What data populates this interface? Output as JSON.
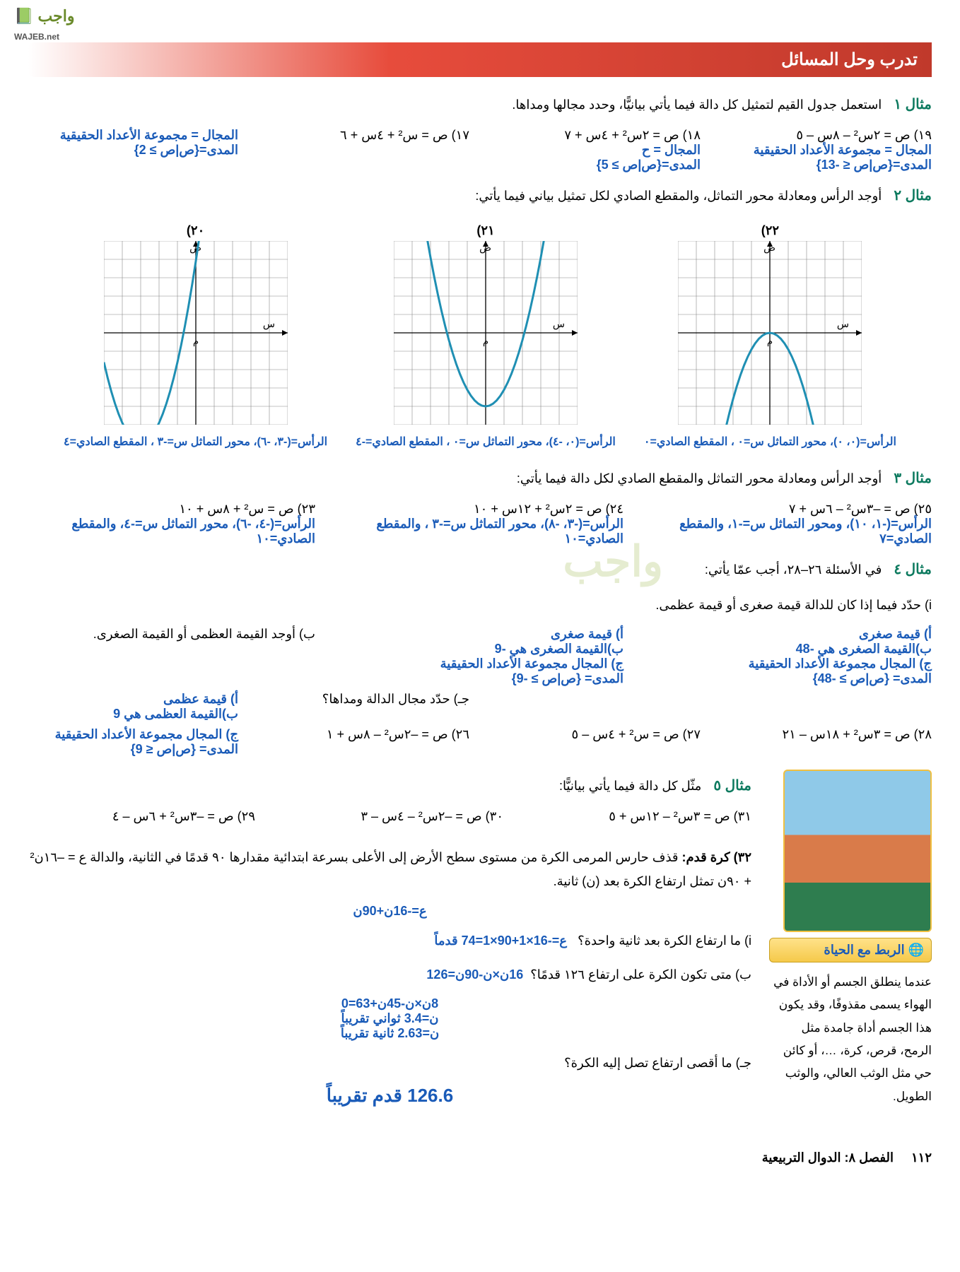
{
  "logo": {
    "ar": "واجب",
    "en": "WAJEB.net"
  },
  "header": "تدرب وحل المسائل",
  "ex1": {
    "label": "مثال ١",
    "prompt": "استعمل جدول القيم لتمثيل كل دالة فيما يأتي بيانيًّا، وحدد مجالها ومداها.",
    "domain_note": "المجال = مجموعة الأعداد الحقيقية",
    "range_note": "المدى={ص|ص ≥ 2}",
    "q17": "١٧) ص = س² + ٤س + ٦",
    "q18": {
      "eq": "١٨) ص = ٢س² + ٤س + ٧",
      "dom": "المجال = ح",
      "ran": "المدى={ص|ص ≥ 5}"
    },
    "q19": {
      "eq": "١٩) ص = ٢س² – ٨س – ٥",
      "dom": "المجال = مجموعة الأعداد الحقيقية",
      "ran": "المدى={ص|ص ≤ -13}"
    }
  },
  "ex2": {
    "label": "مثال ٢",
    "prompt": "أوجد الرأس ومعادلة محور التماثل، والمقطع الصادي لكل تمثيل بياني فيما يأتي:",
    "g": [
      {
        "num": "٢٠)",
        "cap": "الرأس=(-٣، -٦)، محور التماثل س=-٣ ، المقطع الصادي=٤",
        "vx": -3,
        "vy": -6,
        "a": 1.1
      },
      {
        "num": "٢١)",
        "cap": "الرأس=(٠، -٤)، محور التماثل س=٠ ، المقطع الصادي=-٤",
        "vx": 0,
        "vy": -4,
        "a": 0.9
      },
      {
        "num": "٢٢)",
        "cap": "الرأس=(٠، ٠)، محور التماثل س=٠ ، المقطع الصادي=٠",
        "vx": 0,
        "vy": 0,
        "a": -0.9
      }
    ]
  },
  "ex3": {
    "label": "مثال ٣",
    "prompt": "أوجد الرأس ومعادلة محور التماثل والمقطع الصادي لكل دالة فيما يأتي:",
    "q23": {
      "eq": "٢٣) ص = س² + ٨س + ١٠",
      "ans": "الرأس=(-٤، -٦)، محور التماثل س=-٤، والمقطع الصادي=١٠"
    },
    "q24": {
      "eq": "٢٤) ص = ٢س² + ١٢س + ١٠",
      "ans": "الرأس=(-٣، -٨)، محور التماثل س=-٣ ، والمقطع الصادي=١٠"
    },
    "q25": {
      "eq": "٢٥) ص = –٣س² – ٦س + ٧",
      "ans": "الرأس=(-١، ١٠)، ومحور التماثل س=-١، والمقطع الصادي=٧"
    }
  },
  "ex4": {
    "label": "مثال ٤",
    "prompt": "في الأسئلة ٢٦–٢٨، أجب عمّا يأتي:",
    "i": "i) حدّد فيما إذا كان للدالة قيمة صغرى أو قيمة عظمى.",
    "b": "ب) أوجد القيمة العظمى أو القيمة الصغرى.",
    "c": "جـ) حدّد مجال الدالة ومداها؟",
    "a26": {
      "t": "أ) قيمة عظمى",
      "v": "ب)القيمة العظمى هي 9",
      "d": "ج) المجال مجموعة الأعداد الحقيقية",
      "r": "المدى= {ص|ص ≤ 9}"
    },
    "a27": {
      "t": "أ) قيمة صغرى",
      "v": "ب)القيمة الصغرى هي -9",
      "d": "ج) المجال مجموعة الأعداد الحقيقية",
      "r": "المدى= {ص|ص ≥ -9}"
    },
    "a28": {
      "t": "أ) قيمة صغرى",
      "v": "ب)القيمة الصغرى هي -48",
      "d": "ج) المجال مجموعة الأعداد الحقيقية",
      "r": "المدى= {ص|ص ≥ -48}"
    },
    "q26": "٢٦) ص = –٢س² – ٨س + ١",
    "q27": "٢٧) ص = س² + ٤س – ٥",
    "q28": "٢٨) ص = ٣س² + ١٨س – ٢١"
  },
  "ex5": {
    "label": "مثال ٥",
    "prompt": "مثّل كل دالة فيما يأتي بيانيًّا:",
    "q29": "٢٩) ص = –٣س² + ٦س – ٤",
    "q30": "٣٠) ص = –٢س² – ٤س – ٣",
    "q31": "٣١) ص = ٣س² – ١٢س + ٥"
  },
  "p32": {
    "title": "٣٢) كرة قدم:",
    "text": "قذف حارس المرمى الكرة من مستوى سطح الأرض إلى الأعلى بسرعة ابتدائية مقدارها ٩٠ قدمًا في الثانية، والدالة ع = –١٦ن² + ٩٠ن تمثل ارتفاع الكرة بعد (ن) ثانية.",
    "eq0": "ع=-16ن+90ن",
    "i": "i) ما ارتفاع الكرة بعد ثانية واحدة؟",
    "i_ans": "ع=-16×1+90×1=74 قدماً",
    "b": "ب) متى تكون الكرة على ارتفاع ١٢٦ قدمًا؟",
    "b_ans1": "16ن×ن-90ن=126",
    "b_ans2": "8ن×ن-45ن+63=0",
    "b_ans3": "ن=3.4 ثواني تقريباً",
    "b_ans4": "ن=2.63 ثانية تقريباً",
    "c": "جـ) ما أقصى ارتفاع تصل إليه الكرة؟",
    "c_ans": "126.6 قدم تقريباً"
  },
  "linklife": {
    "title": "الربط مع الحياة",
    "text": "عندما ينطلق الجسم أو الأداة في الهواء يسمى مقذوفًا، وقد يكون هذا الجسم أداة جامدة مثل الرمح، قرص، كرة، …، أو كائن حي مثل الوثب العالي، والوثب الطويل."
  },
  "footer": {
    "page": "١١٢",
    "chapter": "الفصل ٨:  الدوال التربيعية"
  },
  "vis": {
    "grid_color": "#888888",
    "axis_color": "#000000",
    "curve_color": "#1f8fb3",
    "graph_size": 260,
    "cells": 10
  }
}
